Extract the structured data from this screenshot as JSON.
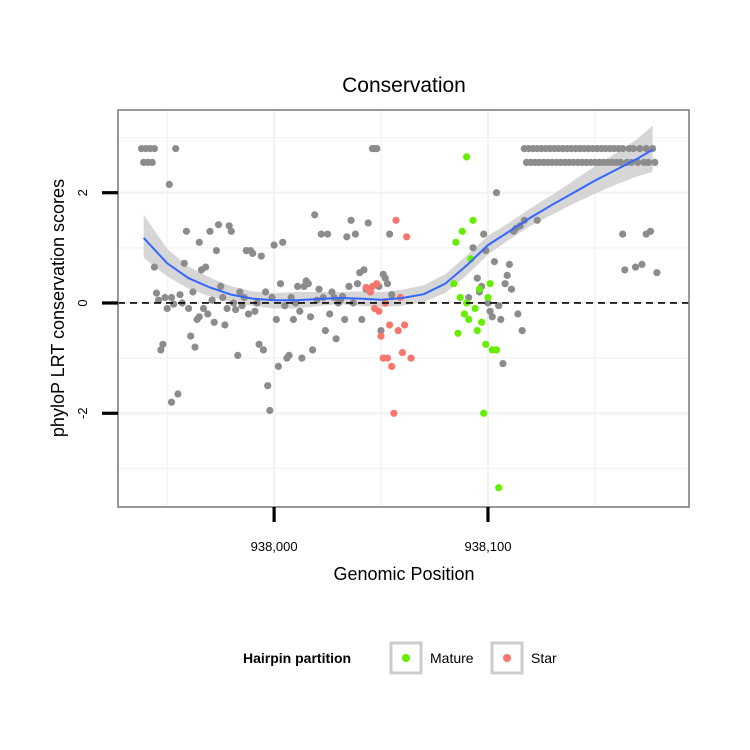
{
  "chart_data": {
    "type": "scatter",
    "title": "Conservation",
    "xlabel": "Genomic Position",
    "ylabel": "phyloP LRT conservation scores",
    "xlim": [
      937927,
      938194
    ],
    "ylim": [
      -3.7,
      3.5
    ],
    "x_ticks": [
      {
        "value": 938000,
        "label": "938,000"
      },
      {
        "value": 938100,
        "label": "938,100"
      }
    ],
    "y_ticks": [
      {
        "value": -2,
        "label": "-2"
      },
      {
        "value": 0,
        "label": "0"
      },
      {
        "value": 2,
        "label": "2"
      }
    ],
    "minor_x": [
      937950,
      938050,
      938150
    ],
    "minor_y": [
      -3,
      -1,
      1,
      3
    ],
    "grid": true,
    "reference_line": {
      "y": 0,
      "style": "dashed",
      "color": "#000000"
    },
    "legend": {
      "title": "Hairpin partition",
      "placement": "bottom",
      "entries": [
        {
          "label": "Mature",
          "color": "#66ee00"
        },
        {
          "label": "Star",
          "color": "#f8766d"
        }
      ]
    },
    "colors": {
      "gray": "#8c8c8c",
      "mature": "#66ee00",
      "star": "#f8766d",
      "smooth": "#3366ff",
      "band": "#cccccc",
      "panel_border": "#7f7f7f",
      "grid": "#f2f2f2"
    },
    "series": [
      {
        "name": "Gray",
        "color": "#8c8c8c",
        "points": [
          [
            937938,
            2.8
          ],
          [
            937939,
            2.55
          ],
          [
            937940,
            2.8
          ],
          [
            937941,
            2.55
          ],
          [
            937942,
            2.8
          ],
          [
            937943,
            2.55
          ],
          [
            937944,
            2.8
          ],
          [
            937944,
            0.65
          ],
          [
            937945,
            0.18
          ],
          [
            937946,
            0.05
          ],
          [
            937947,
            -0.85
          ],
          [
            937948,
            -0.75
          ],
          [
            937949,
            0.1
          ],
          [
            937950,
            -0.1
          ],
          [
            937951,
            2.15
          ],
          [
            937952,
            -1.8
          ],
          [
            937952,
            0.1
          ],
          [
            937953,
            -0.02
          ],
          [
            937954,
            2.8
          ],
          [
            937955,
            -1.65
          ],
          [
            937956,
            0.15
          ],
          [
            937957,
            0.0
          ],
          [
            937958,
            0.72
          ],
          [
            937959,
            1.3
          ],
          [
            937960,
            -0.1
          ],
          [
            937961,
            -0.6
          ],
          [
            937962,
            0.2
          ],
          [
            937963,
            -0.8
          ],
          [
            937964,
            -0.3
          ],
          [
            937965,
            1.1
          ],
          [
            937965,
            -0.25
          ],
          [
            937966,
            0.6
          ],
          [
            937967,
            -0.1
          ],
          [
            937968,
            0.65
          ],
          [
            937969,
            -0.2
          ],
          [
            937970,
            1.3
          ],
          [
            937971,
            0.05
          ],
          [
            937972,
            -0.35
          ],
          [
            937973,
            0.95
          ],
          [
            937974,
            1.42
          ],
          [
            937975,
            0.3
          ],
          [
            937976,
            0.1
          ],
          [
            937977,
            -0.4
          ],
          [
            937978,
            -0.1
          ],
          [
            937979,
            1.4
          ],
          [
            937980,
            1.3
          ],
          [
            937981,
            0.0
          ],
          [
            937982,
            -0.12
          ],
          [
            937983,
            -0.95
          ],
          [
            937984,
            0.2
          ],
          [
            937985,
            -0.05
          ],
          [
            937986,
            0.1
          ],
          [
            937987,
            0.95
          ],
          [
            937988,
            -0.2
          ],
          [
            937989,
            0.95
          ],
          [
            937990,
            0.9
          ],
          [
            937991,
            -0.15
          ],
          [
            937992,
            0.0
          ],
          [
            937993,
            -0.75
          ],
          [
            937994,
            0.85
          ],
          [
            937995,
            -0.85
          ],
          [
            937996,
            0.2
          ],
          [
            937997,
            -1.5
          ],
          [
            937998,
            -1.95
          ],
          [
            937999,
            0.1
          ],
          [
            938000,
            1.05
          ],
          [
            938001,
            -0.3
          ],
          [
            938002,
            -1.15
          ],
          [
            938003,
            0.35
          ],
          [
            938004,
            1.1
          ],
          [
            938005,
            -0.05
          ],
          [
            938006,
            -1.0
          ],
          [
            938007,
            -0.95
          ],
          [
            938008,
            0.1
          ],
          [
            938009,
            -0.3
          ],
          [
            938010,
            0.0
          ],
          [
            938011,
            0.3
          ],
          [
            938012,
            -0.15
          ],
          [
            938013,
            -1.0
          ],
          [
            938014,
            0.3
          ],
          [
            938015,
            0.4
          ],
          [
            938016,
            0.35
          ],
          [
            938017,
            -0.25
          ],
          [
            938018,
            -0.85
          ],
          [
            938019,
            1.6
          ],
          [
            938020,
            0.05
          ],
          [
            938021,
            0.25
          ],
          [
            938022,
            1.25
          ],
          [
            938023,
            0.1
          ],
          [
            938024,
            -0.5
          ],
          [
            938025,
            1.25
          ],
          [
            938026,
            -0.2
          ],
          [
            938027,
            0.2
          ],
          [
            938028,
            0.1
          ],
          [
            938029,
            -0.65
          ],
          [
            938030,
            0.0
          ],
          [
            938031,
            0.05
          ],
          [
            938032,
            0.12
          ],
          [
            938033,
            -0.3
          ],
          [
            938034,
            1.2
          ],
          [
            938035,
            0.3
          ],
          [
            938036,
            1.5
          ],
          [
            938037,
            0.0
          ],
          [
            938038,
            1.25
          ],
          [
            938039,
            0.35
          ],
          [
            938040,
            0.55
          ],
          [
            938041,
            -0.3
          ],
          [
            938042,
            0.6
          ],
          [
            938043,
            0.25
          ],
          [
            938044,
            1.45
          ],
          [
            938045,
            0.2
          ],
          [
            938046,
            2.8
          ],
          [
            938047,
            2.8
          ],
          [
            938048,
            2.8
          ],
          [
            938049,
            0.3
          ],
          [
            938050,
            -0.5
          ],
          [
            938051,
            0.52
          ],
          [
            938052,
            0.45
          ],
          [
            938053,
            0.35
          ],
          [
            938054,
            1.25
          ],
          [
            938055,
            0.15
          ],
          [
            938091,
            0.1
          ],
          [
            938093,
            1.0
          ],
          [
            938095,
            0.45
          ],
          [
            938096,
            0.2
          ],
          [
            938097,
            0.3
          ],
          [
            938098,
            1.25
          ],
          [
            938099,
            0.95
          ],
          [
            938100,
            0.0
          ],
          [
            938101,
            -0.15
          ],
          [
            938102,
            -0.25
          ],
          [
            938103,
            0.75
          ],
          [
            938104,
            2.0
          ],
          [
            938105,
            -0.05
          ],
          [
            938106,
            -0.3
          ],
          [
            938107,
            -1.1
          ],
          [
            938108,
            0.35
          ],
          [
            938109,
            0.5
          ],
          [
            938110,
            0.7
          ],
          [
            938111,
            0.25
          ],
          [
            938112,
            1.3
          ],
          [
            938113,
            1.35
          ],
          [
            938114,
            -0.2
          ],
          [
            938115,
            1.4
          ],
          [
            938116,
            -0.5
          ],
          [
            938117,
            2.8
          ],
          [
            938117,
            1.5
          ],
          [
            938118,
            2.55
          ],
          [
            938119,
            2.8
          ],
          [
            938120,
            2.55
          ],
          [
            938121,
            2.8
          ],
          [
            938122,
            2.55
          ],
          [
            938123,
            2.8
          ],
          [
            938123,
            1.5
          ],
          [
            938124,
            2.55
          ],
          [
            938125,
            2.8
          ],
          [
            938126,
            2.55
          ],
          [
            938127,
            2.8
          ],
          [
            938128,
            2.55
          ],
          [
            938129,
            2.8
          ],
          [
            938130,
            2.55
          ],
          [
            938131,
            2.8
          ],
          [
            938132,
            2.55
          ],
          [
            938133,
            2.8
          ],
          [
            938134,
            2.55
          ],
          [
            938135,
            2.8
          ],
          [
            938136,
            2.55
          ],
          [
            938137,
            2.8
          ],
          [
            938138,
            2.55
          ],
          [
            938139,
            2.8
          ],
          [
            938140,
            2.55
          ],
          [
            938141,
            2.8
          ],
          [
            938142,
            2.55
          ],
          [
            938143,
            2.8
          ],
          [
            938144,
            2.55
          ],
          [
            938145,
            2.8
          ],
          [
            938146,
            2.55
          ],
          [
            938147,
            2.8
          ],
          [
            938148,
            2.55
          ],
          [
            938149,
            2.8
          ],
          [
            938150,
            2.55
          ],
          [
            938151,
            2.8
          ],
          [
            938152,
            2.55
          ],
          [
            938153,
            2.8
          ],
          [
            938154,
            2.55
          ],
          [
            938155,
            2.8
          ],
          [
            938156,
            2.55
          ],
          [
            938157,
            2.8
          ],
          [
            938158,
            2.55
          ],
          [
            938159,
            2.8
          ],
          [
            938160,
            2.55
          ],
          [
            938161,
            2.8
          ],
          [
            938162,
            2.55
          ],
          [
            938163,
            2.8
          ],
          [
            938163,
            1.25
          ],
          [
            938164,
            0.6
          ],
          [
            938165,
            2.55
          ],
          [
            938166,
            2.8
          ],
          [
            938167,
            2.55
          ],
          [
            938168,
            2.8
          ],
          [
            938169,
            0.65
          ],
          [
            938170,
            2.55
          ],
          [
            938171,
            2.8
          ],
          [
            938172,
            0.7
          ],
          [
            938173,
            2.55
          ],
          [
            938174,
            2.8
          ],
          [
            938174,
            1.25
          ],
          [
            938175,
            2.55
          ],
          [
            938176,
            1.3
          ],
          [
            938177,
            2.8
          ],
          [
            938178,
            2.55
          ],
          [
            938179,
            0.55
          ]
        ]
      },
      {
        "name": "Mature",
        "color": "#66ee00",
        "points": [
          [
            938084,
            0.35
          ],
          [
            938085,
            1.1
          ],
          [
            938086,
            -0.55
          ],
          [
            938087,
            0.1
          ],
          [
            938088,
            1.3
          ],
          [
            938089,
            -0.2
          ],
          [
            938090,
            2.65
          ],
          [
            938090,
            0.0
          ],
          [
            938091,
            -0.3
          ],
          [
            938092,
            0.8
          ],
          [
            938093,
            1.5
          ],
          [
            938094,
            -0.1
          ],
          [
            938095,
            -0.5
          ],
          [
            938096,
            0.25
          ],
          [
            938097,
            -0.35
          ],
          [
            938098,
            -2.0
          ],
          [
            938099,
            -0.75
          ],
          [
            938100,
            0.1
          ],
          [
            938101,
            0.35
          ],
          [
            938102,
            -0.85
          ],
          [
            938104,
            -0.85
          ],
          [
            938105,
            -3.35
          ]
        ]
      },
      {
        "name": "Star",
        "color": "#f8766d",
        "points": [
          [
            938043,
            0.28
          ],
          [
            938045,
            0.2
          ],
          [
            938046,
            0.3
          ],
          [
            938047,
            -0.1
          ],
          [
            938048,
            0.35
          ],
          [
            938049,
            -0.15
          ],
          [
            938050,
            -0.6
          ],
          [
            938051,
            -1.0
          ],
          [
            938052,
            0.0
          ],
          [
            938053,
            -1.0
          ],
          [
            938054,
            -0.4
          ],
          [
            938055,
            -1.15
          ],
          [
            938056,
            -2.0
          ],
          [
            938057,
            1.5
          ],
          [
            938058,
            -0.5
          ],
          [
            938059,
            0.1
          ],
          [
            938060,
            -0.9
          ],
          [
            938061,
            -0.4
          ],
          [
            938062,
            1.2
          ],
          [
            938064,
            -1.0
          ]
        ]
      }
    ],
    "smooth": {
      "x": [
        937939,
        937950,
        937960,
        937970,
        937980,
        937990,
        938000,
        938010,
        938020,
        938030,
        938040,
        938050,
        938060,
        938070,
        938080,
        938090,
        938100,
        938110,
        938120,
        938130,
        938140,
        938150,
        938160,
        938170,
        938177
      ],
      "y": [
        1.18,
        0.72,
        0.45,
        0.28,
        0.15,
        0.08,
        0.05,
        0.05,
        0.07,
        0.09,
        0.08,
        0.06,
        0.09,
        0.16,
        0.35,
        0.68,
        1.05,
        1.3,
        1.55,
        1.78,
        2.0,
        2.22,
        2.42,
        2.62,
        2.78
      ],
      "lower": [
        0.82,
        0.48,
        0.26,
        0.12,
        0.01,
        -0.05,
        -0.1,
        -0.1,
        -0.06,
        -0.02,
        -0.05,
        -0.08,
        -0.05,
        0.02,
        0.18,
        0.5,
        0.88,
        1.15,
        1.4,
        1.6,
        1.8,
        1.98,
        2.15,
        2.3,
        2.38
      ],
      "upper": [
        1.6,
        0.98,
        0.66,
        0.46,
        0.3,
        0.21,
        0.18,
        0.2,
        0.2,
        0.2,
        0.21,
        0.2,
        0.24,
        0.32,
        0.52,
        0.86,
        1.22,
        1.46,
        1.72,
        1.96,
        2.22,
        2.48,
        2.72,
        2.98,
        3.22
      ]
    }
  }
}
